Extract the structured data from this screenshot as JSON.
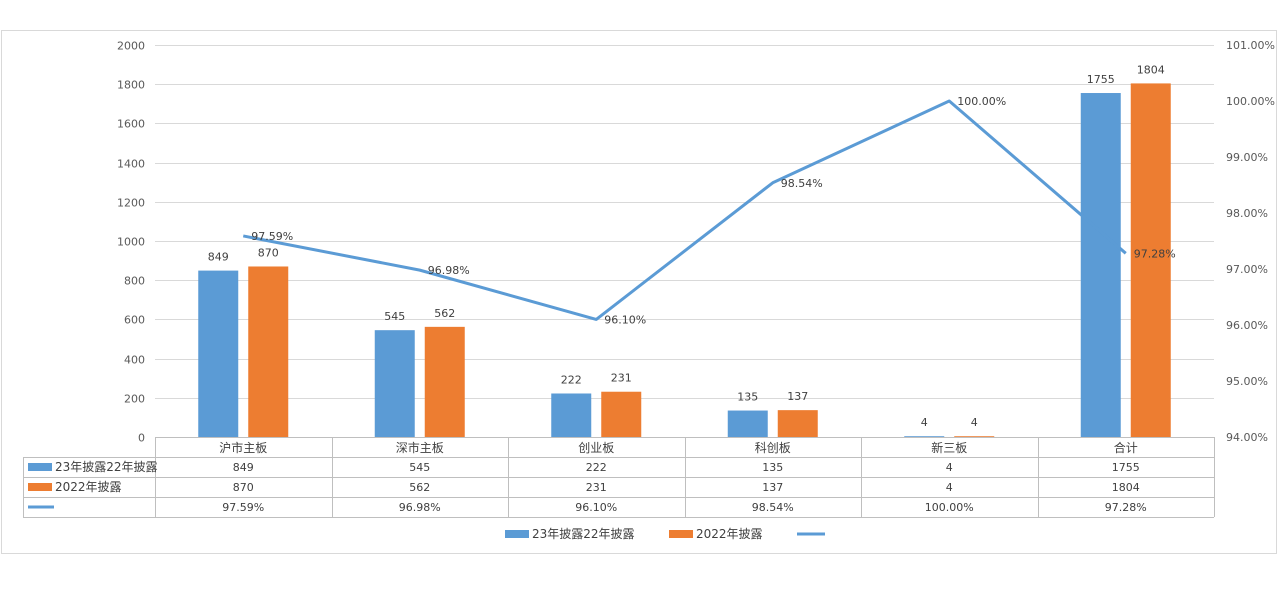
{
  "chart_data": {
    "type": "bar",
    "categories": [
      "沪市主板",
      "深市主板",
      "创业板",
      "科创板",
      "新三板",
      "合计"
    ],
    "series": [
      {
        "name": "23年披露22年披露",
        "type": "bar",
        "axis": "left",
        "color": "#5B9BD5",
        "values": [
          849,
          545,
          222,
          135,
          4,
          1755
        ]
      },
      {
        "name": "2022年披露",
        "type": "bar",
        "axis": "left",
        "color": "#ED7D31",
        "values": [
          870,
          562,
          231,
          137,
          4,
          1804
        ]
      },
      {
        "name": "",
        "type": "line",
        "axis": "right",
        "color": "#5B9BD5",
        "values": [
          97.59,
          96.98,
          96.1,
          98.54,
          100.0,
          97.28
        ],
        "labels": [
          "97.59%",
          "96.98%",
          "96.10%",
          "98.54%",
          "100.00%",
          "97.28%"
        ]
      }
    ],
    "y_left": {
      "min": 0,
      "max": 2000,
      "step": 200,
      "ticks": [
        "0",
        "200",
        "400",
        "600",
        "800",
        "1000",
        "1200",
        "1400",
        "1600",
        "1800",
        "2000"
      ]
    },
    "y_right": {
      "min": 94,
      "max": 101,
      "step": 1,
      "ticks": [
        "94.00%",
        "95.00%",
        "96.00%",
        "97.00%",
        "98.00%",
        "99.00%",
        "100.00%",
        "101.00%"
      ]
    },
    "data_table": {
      "rows": [
        {
          "series": 0,
          "cells": [
            "849",
            "545",
            "222",
            "135",
            "4",
            "1755"
          ]
        },
        {
          "series": 1,
          "cells": [
            "870",
            "562",
            "231",
            "137",
            "4",
            "1804"
          ]
        },
        {
          "series": 2,
          "cells": [
            "97.59%",
            "96.98%",
            "96.10%",
            "98.54%",
            "100.00%",
            "97.28%"
          ]
        }
      ]
    },
    "grid": true,
    "legend_position": "bottom",
    "title": "",
    "xlabel": "",
    "ylabel": ""
  }
}
